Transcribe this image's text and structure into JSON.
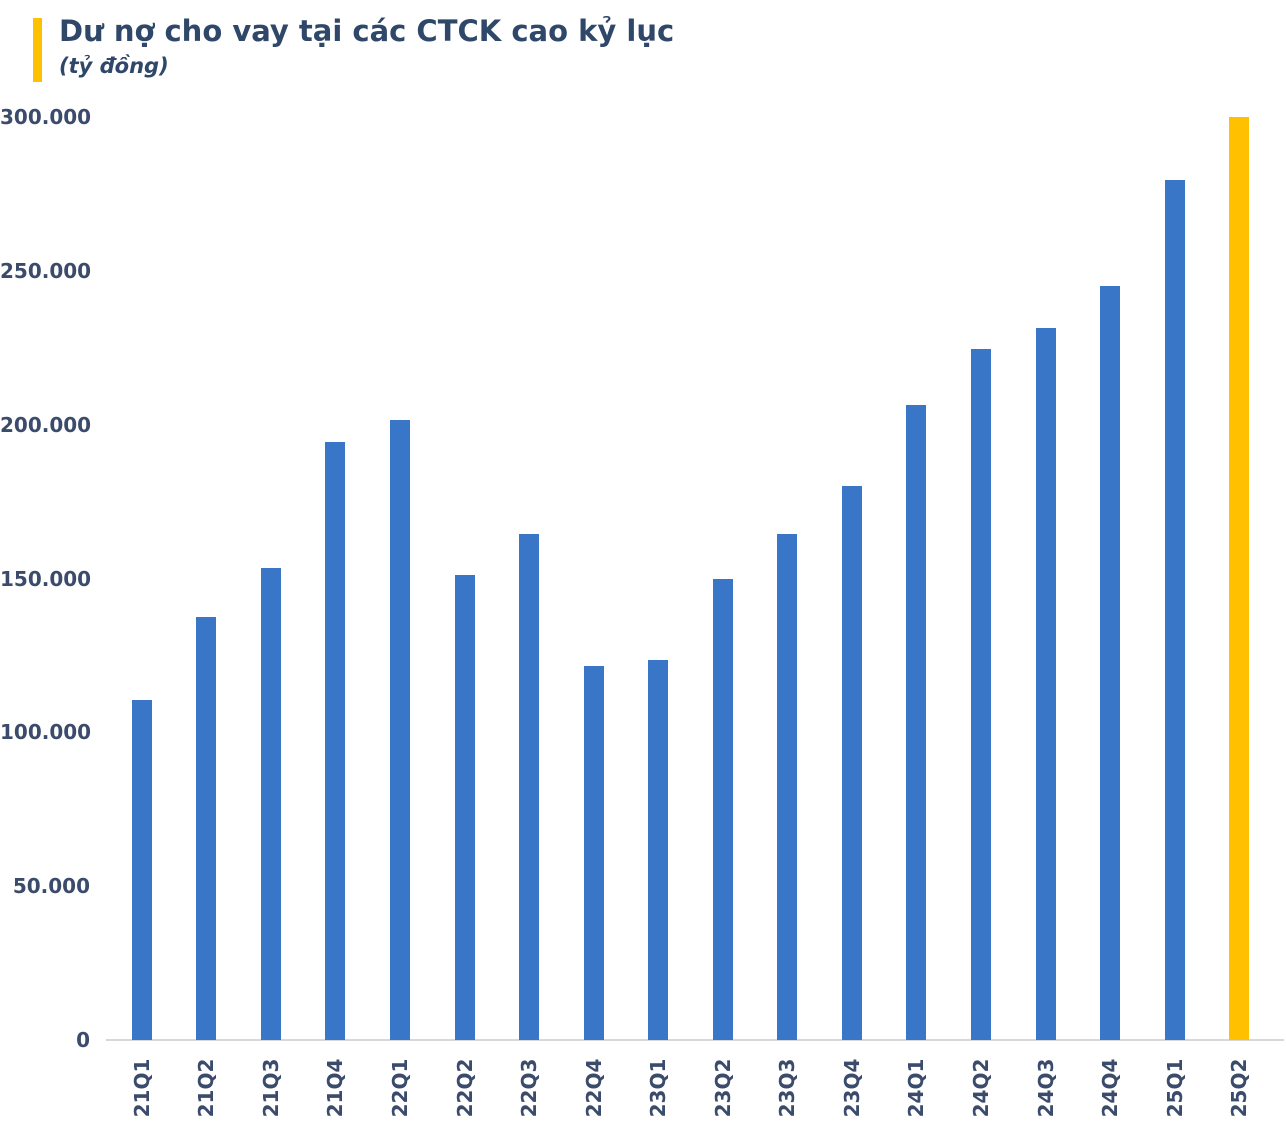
{
  "header": {
    "title": "Dư nợ cho vay tại các CTCK cao kỷ lục",
    "subtitle": "(tỷ đồng)"
  },
  "chart_data": {
    "type": "bar",
    "title": "Dư nợ cho vay tại các CTCK cao kỷ lục",
    "unit": "tỷ đồng",
    "categories": [
      "21Q1",
      "21Q2",
      "21Q3",
      "21Q4",
      "22Q1",
      "22Q2",
      "22Q3",
      "22Q4",
      "23Q1",
      "23Q2",
      "23Q3",
      "23Q4",
      "24Q1",
      "24Q2",
      "24Q3",
      "24Q4",
      "25Q1",
      "25Q2"
    ],
    "values": [
      110500,
      137500,
      153500,
      194500,
      201500,
      151000,
      164500,
      121500,
      123500,
      150000,
      164500,
      180000,
      206500,
      224500,
      231500,
      245000,
      279500,
      300000
    ],
    "highlight_category": "25Q2",
    "ylim": [
      0,
      300000
    ],
    "ytick_step": 50000,
    "ytick_labels": [
      "0",
      "50.000",
      "100.000",
      "150.000",
      "200.000",
      "250.000",
      "300.000"
    ],
    "grid": false,
    "legend": false,
    "xlabel": "",
    "ylabel": ""
  },
  "colors": {
    "bar": "#3A76C8",
    "highlight": "#FFC000",
    "accent": "#FFC000",
    "title_text": "#2F4768",
    "axis_text": "#3B4B6B",
    "axis_line": "#D8D8D8",
    "background": "#FFFFFF"
  }
}
